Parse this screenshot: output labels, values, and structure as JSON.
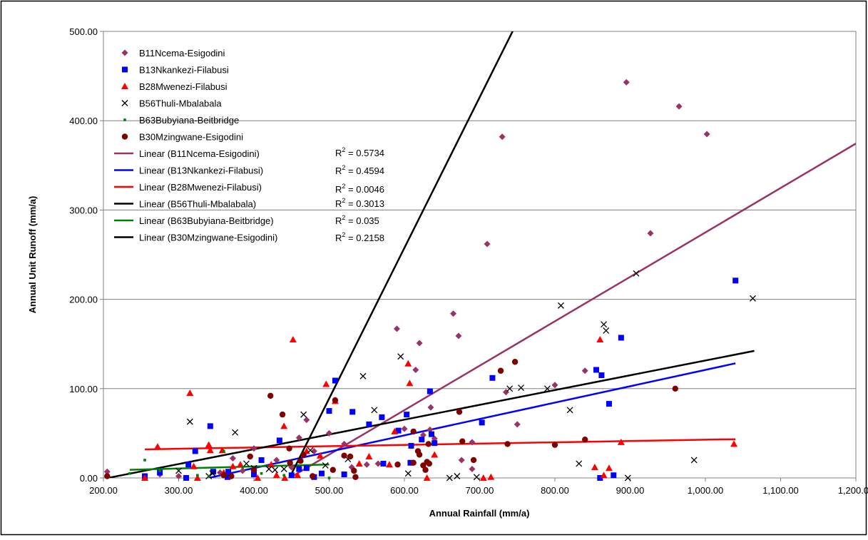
{
  "chart_data": {
    "type": "scatter",
    "title": "",
    "xlabel": "Annual Rainfall (mm/a)",
    "ylabel": "Annual Unit Runoff (mm/a)",
    "xlim": [
      200,
      1200
    ],
    "ylim": [
      0,
      500
    ],
    "xticks": [
      200,
      300,
      400,
      500,
      600,
      700,
      800,
      900,
      1000,
      1100,
      1200
    ],
    "yticks": [
      0,
      100,
      200,
      300,
      400,
      500
    ],
    "xtick_labels": [
      "200.00",
      "300.00",
      "400.00",
      "500.00",
      "600.00",
      "700.00",
      "800.00",
      "900.00",
      "1,000.00",
      "1,100.00",
      "1,200.00"
    ],
    "ytick_labels": [
      "0.00",
      "100.00",
      "200.00",
      "300.00",
      "400.00",
      "500.00"
    ],
    "grid": "horizontal",
    "legend_position": "top-left",
    "series": [
      {
        "name": "B11Ncema-Esigodini",
        "marker": "diamond",
        "color": "#993366",
        "points": [
          [
            205,
            7
          ],
          [
            275,
            4
          ],
          [
            300,
            2
          ],
          [
            355,
            6
          ],
          [
            385,
            8
          ],
          [
            400,
            33
          ],
          [
            430,
            20
          ],
          [
            450,
            12
          ],
          [
            460,
            45
          ],
          [
            470,
            65
          ],
          [
            480,
            30
          ],
          [
            500,
            50
          ],
          [
            520,
            38
          ],
          [
            530,
            12
          ],
          [
            550,
            15
          ],
          [
            565,
            16
          ],
          [
            590,
            167
          ],
          [
            600,
            55
          ],
          [
            615,
            121
          ],
          [
            620,
            151
          ],
          [
            625,
            48
          ],
          [
            635,
            79
          ],
          [
            640,
            44
          ],
          [
            665,
            184
          ],
          [
            672,
            159
          ],
          [
            676,
            20
          ],
          [
            690,
            40
          ],
          [
            710,
            262
          ],
          [
            730,
            382
          ],
          [
            735,
            96
          ],
          [
            750,
            60
          ],
          [
            800,
            104
          ],
          [
            840,
            120
          ],
          [
            895,
            443
          ],
          [
            927,
            274
          ],
          [
            965,
            416
          ],
          [
            1002,
            385
          ],
          [
            634,
            54
          ],
          [
            690,
            10
          ],
          [
            372,
            22
          ]
        ]
      },
      {
        "name": "B13Nkankezi-Filabusi",
        "marker": "square",
        "color": "#0000ff",
        "points": [
          [
            255,
            2
          ],
          [
            275,
            6
          ],
          [
            310,
            0
          ],
          [
            313,
            15
          ],
          [
            322,
            30
          ],
          [
            342,
            58
          ],
          [
            346,
            7
          ],
          [
            365,
            1
          ],
          [
            366,
            7
          ],
          [
            400,
            4
          ],
          [
            410,
            20
          ],
          [
            434,
            42
          ],
          [
            450,
            3
          ],
          [
            460,
            10
          ],
          [
            470,
            11
          ],
          [
            480,
            1
          ],
          [
            490,
            5
          ],
          [
            500,
            75
          ],
          [
            508,
            109
          ],
          [
            520,
            4
          ],
          [
            531,
            74
          ],
          [
            553,
            60
          ],
          [
            570,
            68
          ],
          [
            572,
            16
          ],
          [
            592,
            53
          ],
          [
            603,
            71
          ],
          [
            608,
            17
          ],
          [
            609,
            36
          ],
          [
            623,
            43
          ],
          [
            634,
            97
          ],
          [
            636,
            49
          ],
          [
            640,
            39
          ],
          [
            703,
            62
          ],
          [
            717,
            112
          ],
          [
            855,
            121
          ],
          [
            860,
            0
          ],
          [
            862,
            115
          ],
          [
            872,
            83
          ],
          [
            878,
            3
          ],
          [
            888,
            157
          ],
          [
            1040,
            221
          ]
        ]
      },
      {
        "name": "B28Mwenezi-Filabusi",
        "marker": "triangle",
        "color": "#ff0000",
        "points": [
          [
            255,
            0
          ],
          [
            272,
            35
          ],
          [
            315,
            95
          ],
          [
            320,
            13
          ],
          [
            325,
            0
          ],
          [
            340,
            37
          ],
          [
            342,
            31
          ],
          [
            358,
            31
          ],
          [
            360,
            6
          ],
          [
            382,
            15
          ],
          [
            405,
            0
          ],
          [
            423,
            15
          ],
          [
            430,
            3
          ],
          [
            440,
            58
          ],
          [
            441,
            0
          ],
          [
            452,
            155
          ],
          [
            458,
            3
          ],
          [
            470,
            30
          ],
          [
            488,
            25
          ],
          [
            496,
            105
          ],
          [
            508,
            86
          ],
          [
            540,
            16
          ],
          [
            553,
            24
          ],
          [
            580,
            15
          ],
          [
            587,
            52
          ],
          [
            605,
            128
          ],
          [
            607,
            106
          ],
          [
            630,
            0
          ],
          [
            640,
            26
          ],
          [
            705,
            0
          ],
          [
            715,
            1
          ],
          [
            853,
            12
          ],
          [
            860,
            155
          ],
          [
            865,
            3
          ],
          [
            872,
            11
          ],
          [
            888,
            40
          ],
          [
            1038,
            38
          ],
          [
            372,
            13
          ]
        ]
      },
      {
        "name": "B56Thuli-Mbalabala",
        "marker": "x",
        "color": "#000000",
        "points": [
          [
            300,
            8
          ],
          [
            315,
            63
          ],
          [
            340,
            2
          ],
          [
            375,
            51
          ],
          [
            390,
            16
          ],
          [
            420,
            10
          ],
          [
            428,
            9
          ],
          [
            466,
            71
          ],
          [
            475,
            31
          ],
          [
            495,
            14
          ],
          [
            525,
            21
          ],
          [
            545,
            114
          ],
          [
            560,
            76
          ],
          [
            595,
            136
          ],
          [
            605,
            5
          ],
          [
            660,
            0
          ],
          [
            670,
            2
          ],
          [
            696,
            1
          ],
          [
            740,
            100
          ],
          [
            755,
            101
          ],
          [
            790,
            100
          ],
          [
            808,
            193
          ],
          [
            820,
            76
          ],
          [
            832,
            16
          ],
          [
            865,
            172
          ],
          [
            868,
            165
          ],
          [
            897,
            0
          ],
          [
            908,
            229
          ],
          [
            985,
            20
          ],
          [
            1063,
            201
          ],
          [
            440,
            10
          ],
          [
            400,
            11
          ],
          [
            345,
            5
          ]
        ]
      },
      {
        "name": "B63Bubyiana-Beitbridge",
        "marker": "small-square",
        "color": "#008000",
        "points": [
          [
            235,
            5
          ],
          [
            255,
            20
          ],
          [
            275,
            8
          ],
          [
            300,
            10
          ],
          [
            340,
            2
          ],
          [
            360,
            30
          ],
          [
            385,
            12
          ],
          [
            410,
            5
          ],
          [
            440,
            3
          ],
          [
            460,
            20
          ],
          [
            500,
            0
          ],
          [
            325,
            3
          ]
        ]
      },
      {
        "name": "B30Mzingwane-Esigodini",
        "marker": "circle",
        "color": "#800000",
        "points": [
          [
            205,
            2
          ],
          [
            360,
            3
          ],
          [
            370,
            2
          ],
          [
            395,
            24
          ],
          [
            400,
            9
          ],
          [
            422,
            92
          ],
          [
            438,
            71
          ],
          [
            447,
            33
          ],
          [
            448,
            17
          ],
          [
            462,
            19
          ],
          [
            478,
            2
          ],
          [
            508,
            87
          ],
          [
            520,
            25
          ],
          [
            528,
            24
          ],
          [
            533,
            8
          ],
          [
            535,
            1
          ],
          [
            591,
            15
          ],
          [
            612,
            52
          ],
          [
            618,
            30
          ],
          [
            620,
            26
          ],
          [
            625,
            14
          ],
          [
            628,
            9
          ],
          [
            630,
            18
          ],
          [
            632,
            38
          ],
          [
            633,
            16
          ],
          [
            673,
            74
          ],
          [
            677,
            41
          ],
          [
            692,
            20
          ],
          [
            728,
            120
          ],
          [
            737,
            38
          ],
          [
            747,
            130
          ],
          [
            800,
            37
          ],
          [
            840,
            43
          ],
          [
            960,
            100
          ],
          [
            466,
            26
          ],
          [
            505,
            9
          ],
          [
            612,
            17
          ]
        ]
      }
    ],
    "trendlines": [
      {
        "name": "Linear (B11Ncema-Esigodini)",
        "color": "#993366",
        "type": "linear",
        "slope": 0.4975,
        "intercept": -222.6,
        "x_range": [
          440,
          1200
        ],
        "r2_label": "R",
        "r2_value": "= 0.5734"
      },
      {
        "name": "Linear (B13Nkankezi-Filabusi)",
        "color": "#0000ff",
        "type": "linear",
        "slope": 0.1833,
        "intercept": -62.3,
        "x_range": [
          340,
          1040
        ],
        "r2_label": "R",
        "r2_value": "= 0.4594"
      },
      {
        "name": "Linear (B28Mwenezi-Filabusi)",
        "color": "#ff0000",
        "type": "linear",
        "slope": 0.0145,
        "intercept": 28.3,
        "x_range": [
          255,
          1040
        ],
        "r2_label": "R",
        "r2_value": "= 0.0046"
      },
      {
        "name": "Linear (B56Thuli-Mbalabala)",
        "color": "#000000",
        "type": "linear",
        "slope": 0.1656,
        "intercept": -34.1,
        "x_range": [
          205,
          1065
        ],
        "r2_label": "R",
        "r2_value": "= 0.3013"
      },
      {
        "name": "Linear (B63Bubyiana-Beitbridge)",
        "color": "#008000",
        "type": "linear",
        "slope": 0.0226,
        "intercept": 3.8,
        "x_range": [
          235,
          500
        ],
        "r2_label": "R",
        "r2_value": "= 0.035"
      },
      {
        "name": "Linear (B30Mzingwane-Esigodini)",
        "color": "#000000",
        "type": "linear",
        "slope": 1.6863,
        "intercept": -754.2,
        "x_range": [
          448,
          745
        ],
        "r2_label": "R",
        "r2_value": "= 0.2158"
      }
    ],
    "r2_superscript": "2"
  }
}
